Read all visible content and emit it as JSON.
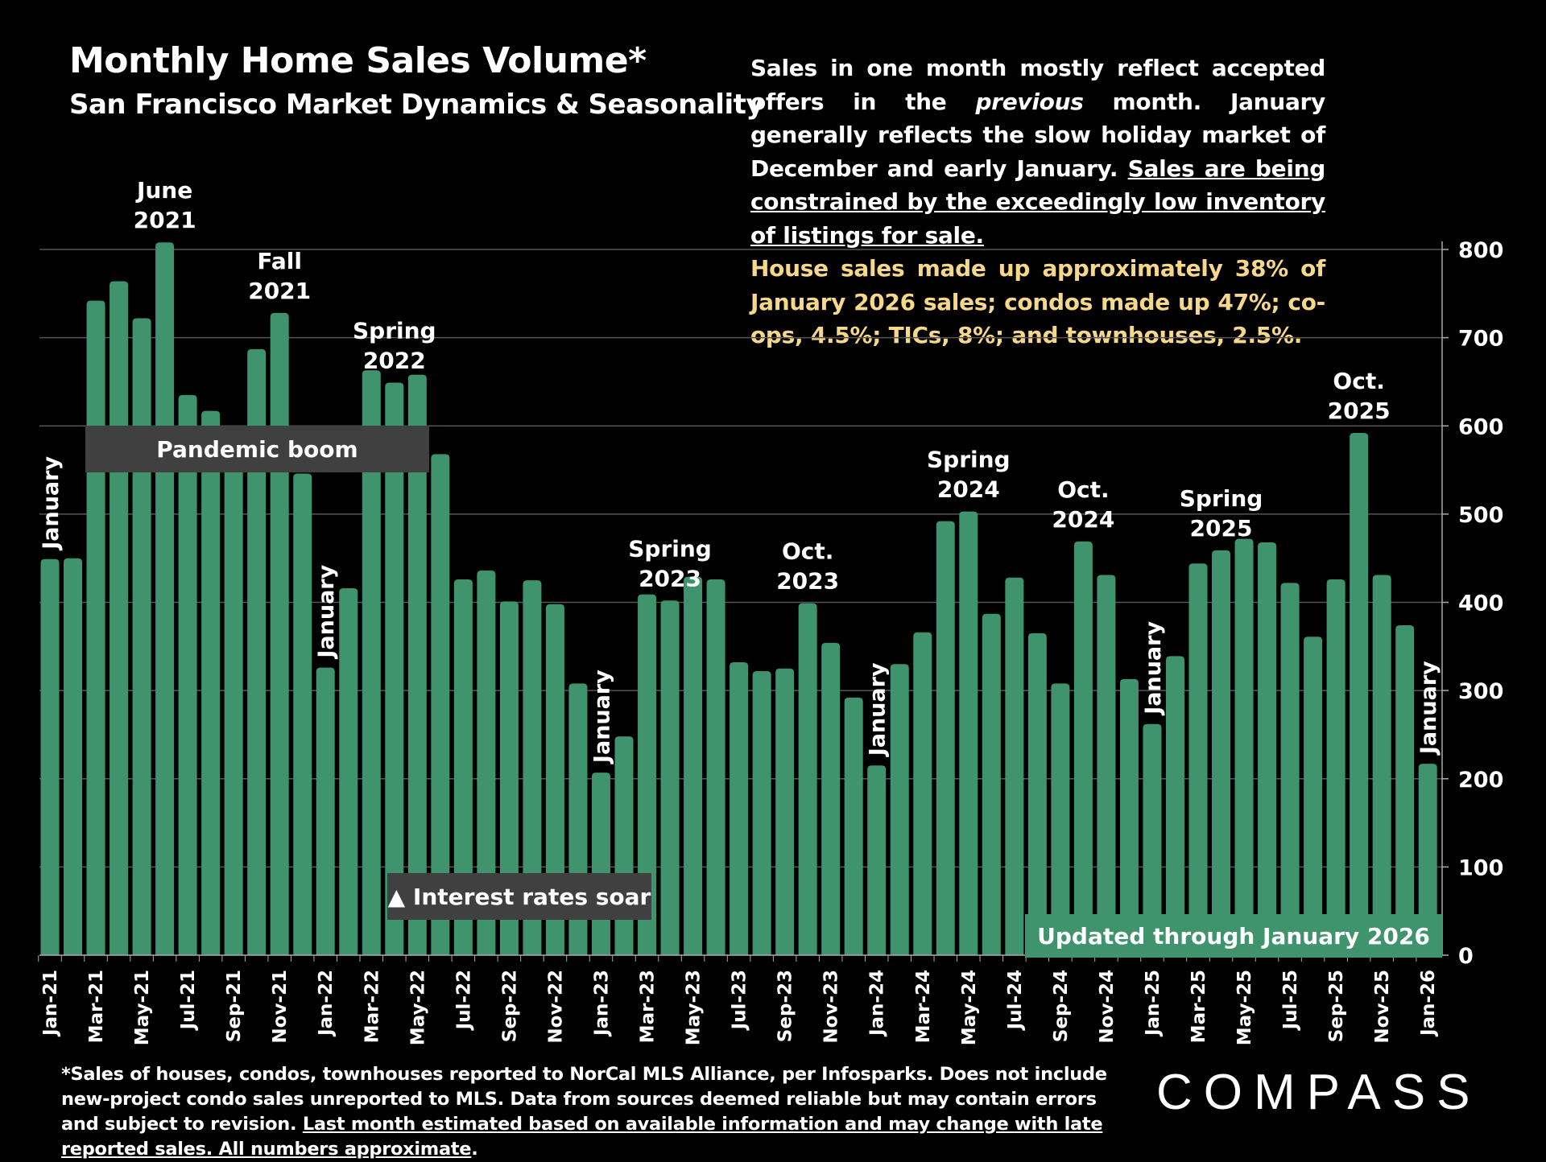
{
  "title": "Monthly Home Sales Volume*",
  "subtitle": "San Francisco Market Dynamics & Seasonality",
  "description": {
    "part1": "Sales in one month mostly reflect accepted offers in the ",
    "italic": "previous",
    "part2": " month. January generally reflects the slow holiday market of December and early January. ",
    "underlined": "Sales are being constrained by the exceedingly low inventory of listings for sale."
  },
  "note": "House sales made up approximately 38% of January 2026 sales; condos made up 47%; co-ops, 4.5%; TICs, 8%; and townhouses, 2.5%.",
  "footnote": {
    "text": "*Sales of houses, condos, townhouses reported to NorCal MLS Alliance, per Infosparks. Does not include new-project condo sales unreported to MLS. Data from sources deemed reliable but may contain errors and subject to revision. ",
    "underlined": "Last month estimated based on available information and may change with late reported sales. All numbers approximate",
    "end": "."
  },
  "logo": "COMPASS",
  "colors": {
    "bar": "#3f936d",
    "background": "#000000",
    "note": "#f7d88a",
    "box": "#404040"
  },
  "chart_data": {
    "type": "bar",
    "ylim": [
      0,
      800
    ],
    "yticks": [
      0,
      100,
      200,
      300,
      400,
      500,
      600,
      700,
      800
    ],
    "y_axis_side": "right",
    "grid": true,
    "categories": [
      "Jan-21",
      "Feb-21",
      "Mar-21",
      "Apr-21",
      "May-21",
      "Jun-21",
      "Jul-21",
      "Aug-21",
      "Sep-21",
      "Oct-21",
      "Nov-21",
      "Dec-21",
      "Jan-22",
      "Feb-22",
      "Mar-22",
      "Apr-22",
      "May-22",
      "Jun-22",
      "Jul-22",
      "Aug-22",
      "Sep-22",
      "Oct-22",
      "Nov-22",
      "Dec-22",
      "Jan-23",
      "Feb-23",
      "Mar-23",
      "Apr-23",
      "May-23",
      "Jun-23",
      "Jul-23",
      "Aug-23",
      "Sep-23",
      "Oct-23",
      "Nov-23",
      "Dec-23",
      "Jan-24",
      "Feb-24",
      "Mar-24",
      "Apr-24",
      "May-24",
      "Jun-24",
      "Jul-24",
      "Aug-24",
      "Sep-24",
      "Oct-24",
      "Nov-24",
      "Dec-24",
      "Jan-25",
      "Feb-25",
      "Mar-25",
      "Apr-25",
      "May-25",
      "Jun-25",
      "Jul-25",
      "Aug-25",
      "Sep-25",
      "Oct-25",
      "Nov-25",
      "Dec-25",
      "Jan-26"
    ],
    "values": [
      449,
      450,
      742,
      764,
      722,
      808,
      635,
      617,
      580,
      687,
      728,
      546,
      326,
      416,
      663,
      649,
      658,
      568,
      426,
      436,
      401,
      425,
      398,
      308,
      207,
      248,
      409,
      402,
      429,
      426,
      332,
      322,
      325,
      399,
      354,
      292,
      215,
      330,
      366,
      492,
      503,
      387,
      428,
      365,
      308,
      469,
      431,
      313,
      262,
      339,
      444,
      459,
      472,
      468,
      422,
      361,
      426,
      592,
      431,
      374,
      217
    ],
    "annotations": [
      {
        "month": "Jun-21",
        "text": [
          "June",
          "2021"
        ]
      },
      {
        "month": "Nov-21",
        "text": [
          "Fall",
          "2021"
        ]
      },
      {
        "month": "Apr-22",
        "text": [
          "Spring",
          "2022"
        ]
      },
      {
        "month": "Apr-23",
        "text": [
          "Spring",
          "2023"
        ]
      },
      {
        "month": "Oct-23",
        "text": [
          "Oct.",
          "2023"
        ]
      },
      {
        "month": "May-24",
        "text": [
          "Spring",
          "2024"
        ]
      },
      {
        "month": "Oct-24",
        "text": [
          "Oct.",
          "2024"
        ]
      },
      {
        "month": "Apr-25",
        "text": [
          "Spring",
          "2025"
        ]
      },
      {
        "month": "Oct-25",
        "text": [
          "Oct.",
          "2025"
        ]
      }
    ],
    "january_label": "January",
    "january_months": [
      "Jan-21",
      "Jan-22",
      "Jan-23",
      "Jan-24",
      "Jan-25",
      "Jan-26"
    ],
    "boxes": {
      "pandemic": "Pandemic boom",
      "rates": "▲ Interest rates soar",
      "updated": "Updated through January 2026"
    }
  }
}
